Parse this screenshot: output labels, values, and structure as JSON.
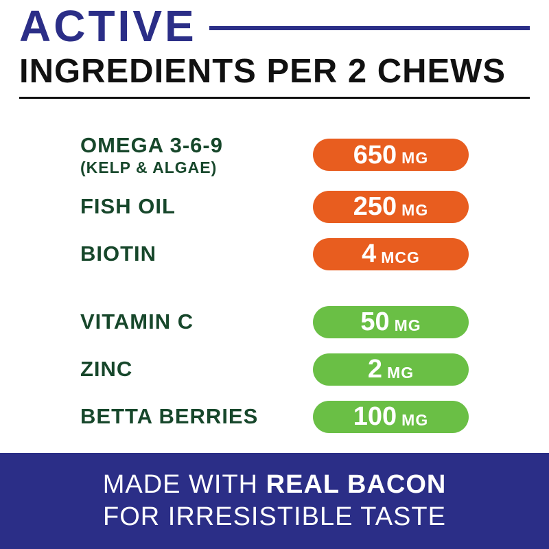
{
  "header": {
    "accent_word": "ACTIVE",
    "title": "INGREDIENTS PER 2 CHEWS"
  },
  "ingredients": [
    {
      "name": "OMEGA 3-6-9",
      "subname": "(KELP & ALGAE)",
      "amount": "650",
      "unit": "MG",
      "pill_color": "orange"
    },
    {
      "name": "FISH OIL",
      "amount": "250",
      "unit": "MG",
      "pill_color": "orange"
    },
    {
      "name": "BIOTIN",
      "amount": "4",
      "unit": "MCG",
      "pill_color": "orange"
    },
    {
      "name": "VITAMIN C",
      "amount": "50",
      "unit": "MG",
      "pill_color": "green"
    },
    {
      "name": "ZINC",
      "amount": "2",
      "unit": "MG",
      "pill_color": "green"
    },
    {
      "name": "BETTA BERRIES",
      "amount": "100",
      "unit": "MG",
      "pill_color": "green"
    }
  ],
  "footer": {
    "line1_prefix": "MADE WITH ",
    "line1_bold": "REAL BACON",
    "line2": "FOR IRRESISTIBLE TASTE"
  },
  "colors": {
    "navy": "#2b2e87",
    "orange": "#e85d1f",
    "green": "#6abf45",
    "label": "#17472b",
    "black": "#111111",
    "white": "#ffffff"
  }
}
